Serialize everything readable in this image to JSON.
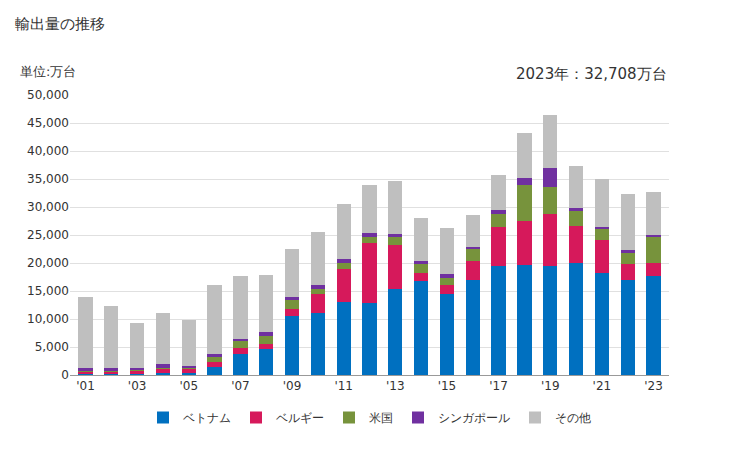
{
  "chart_data": {
    "type": "bar",
    "stacked": true,
    "title": "輸出量の推移",
    "y_label": "単位:万台",
    "annotations": [
      {
        "text": "2023年：32,708万台"
      }
    ],
    "categories": [
      "'01",
      null,
      "'03",
      null,
      "'05",
      null,
      "'07",
      null,
      "'09",
      null,
      "'11",
      null,
      "'13",
      null,
      "'15",
      null,
      "'17",
      null,
      "'19",
      null,
      "'21",
      null,
      "'23"
    ],
    "series": [
      {
        "name": "ベトナム",
        "color": "#0070c0",
        "values": [
          200,
          200,
          200,
          300,
          300,
          1500,
          3800,
          4700,
          10500,
          11000,
          13000,
          12800,
          15400,
          16800,
          14500,
          17000,
          19400,
          19600,
          19500,
          20000,
          18300,
          17000,
          17600
        ]
      },
      {
        "name": "ベルギー",
        "color": "#d6195b",
        "values": [
          400,
          400,
          500,
          700,
          700,
          900,
          1000,
          800,
          1200,
          3400,
          6000,
          10800,
          7800,
          1500,
          1600,
          3300,
          7100,
          7900,
          9200,
          6600,
          5800,
          2800,
          2400
        ]
      },
      {
        "name": "米国",
        "color": "#77933c",
        "values": [
          200,
          200,
          200,
          300,
          200,
          800,
          1200,
          1500,
          1700,
          1000,
          1000,
          1000,
          1500,
          1500,
          1300,
          2200,
          2200,
          6400,
          4800,
          2700,
          2000,
          2000,
          4700
        ]
      },
      {
        "name": "シンガポール",
        "color": "#7030a0",
        "values": [
          500,
          400,
          400,
          600,
          400,
          500,
          500,
          600,
          500,
          600,
          700,
          700,
          500,
          600,
          600,
          400,
          700,
          1300,
          3400,
          600,
          400,
          500,
          300
        ]
      },
      {
        "name": "その他",
        "color": "#bfbfbf",
        "values": [
          12700,
          11100,
          8000,
          9100,
          8300,
          12300,
          11100,
          10200,
          8600,
          9500,
          9800,
          8700,
          9500,
          7600,
          8200,
          5700,
          6400,
          8100,
          9600,
          7500,
          8500,
          10000,
          7708
        ]
      }
    ],
    "ylim": [
      0,
      50000
    ],
    "yticks": [
      0,
      {
        "value": 5000,
        "label": "5,000"
      },
      {
        "value": 10000,
        "label": "10,000"
      },
      {
        "value": 15000,
        "label": "15,000"
      },
      {
        "value": 20000,
        "label": "20,000"
      },
      {
        "value": 25000,
        "label": "25,000"
      },
      {
        "value": 30000,
        "label": "30,000"
      },
      {
        "value": 35000,
        "label": "35,000"
      },
      {
        "value": 40000,
        "label": "40,000"
      },
      {
        "value": 45000,
        "label": "45,000"
      },
      {
        "value": 50000,
        "label": "50,000"
      }
    ],
    "grid": true,
    "legend": "bottom"
  }
}
